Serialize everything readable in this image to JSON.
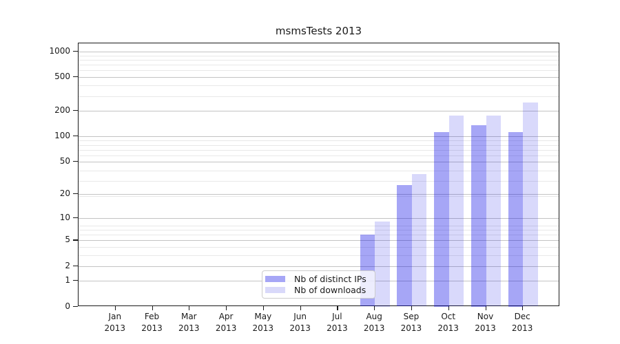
{
  "chart_data": {
    "type": "bar",
    "title": "msmsTests 2013",
    "categories": [
      "Jan",
      "Feb",
      "Mar",
      "Apr",
      "May",
      "Jun",
      "Jul",
      "Aug",
      "Sep",
      "Oct",
      "Nov",
      "Dec"
    ],
    "year_label": "2013",
    "series": [
      {
        "name": "Nb of distinct IPs",
        "values": [
          0,
          0,
          0,
          0,
          0,
          0,
          0,
          6,
          26,
          113,
          135,
          113
        ],
        "bar_color": "rgba(0,0,230,0.35)",
        "swatch_color": "#a6a6f6"
      },
      {
        "name": "Nb of downloads",
        "values": [
          0,
          0,
          0,
          0,
          0,
          0,
          0,
          9,
          35,
          177,
          177,
          250
        ],
        "bar_color": "rgba(0,0,230,0.15)",
        "swatch_color": "#d9d9fa"
      }
    ],
    "y_axis": {
      "scale": "log10(1+v)",
      "ticks": [
        0,
        1,
        2,
        5,
        10,
        20,
        50,
        100,
        200,
        500,
        1000
      ],
      "ylim": [
        0,
        1250
      ],
      "grid": true
    },
    "x_axis": {
      "tick_count": 12
    },
    "legend": {
      "position": "lower center"
    },
    "colors": {
      "grid_major": "#c3c3c3",
      "grid_minor": "#e8e8e8",
      "spine": "#1a1a1a",
      "text": "#1a1a1a",
      "background": "#ffffff"
    }
  }
}
